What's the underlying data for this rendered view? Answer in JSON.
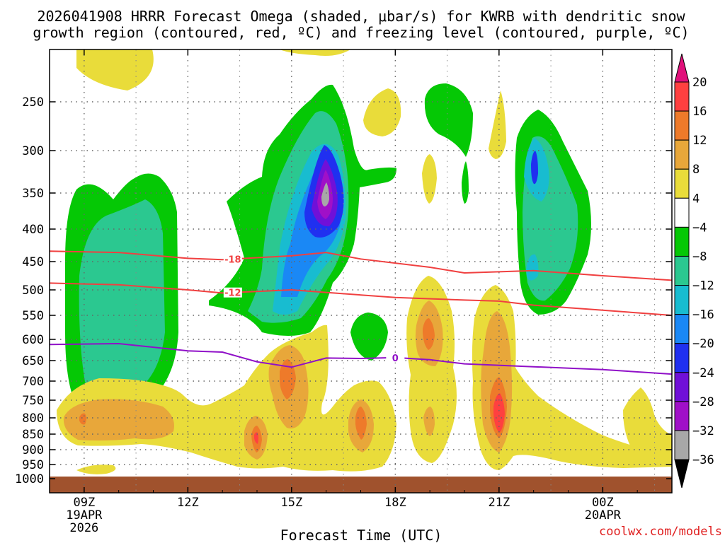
{
  "chart_data": {
    "type": "contour",
    "title_line1": "2026041908 HRRR Forecast Omega (shaded, μbar/s) for KWRB with dendritic snow",
    "title_line2": "growth region (contoured, red, ºC) and freezing level (contoured, purple, ºC)",
    "xlabel": "Forecast Time (UTC)",
    "ylabel": "",
    "credit": "coolwx.com/models",
    "x_ticks": [
      {
        "h": 9,
        "label": "09Z",
        "sub1": "19APR",
        "sub2": "2026"
      },
      {
        "h": 12,
        "label": "12Z",
        "sub1": "",
        "sub2": ""
      },
      {
        "h": 15,
        "label": "15Z",
        "sub1": "",
        "sub2": ""
      },
      {
        "h": 18,
        "label": "18Z",
        "sub1": "",
        "sub2": ""
      },
      {
        "h": 21,
        "label": "21Z",
        "sub1": "",
        "sub2": ""
      },
      {
        "h": 24,
        "label": "00Z",
        "sub1": "20APR",
        "sub2": ""
      }
    ],
    "x_range_hours": [
      8,
      26
    ],
    "y_levels": [
      {
        "p": 250,
        "label": "250"
      },
      {
        "p": 300,
        "label": "300"
      },
      {
        "p": 350,
        "label": "350"
      },
      {
        "p": 400,
        "label": "400"
      },
      {
        "p": 450,
        "label": "450"
      },
      {
        "p": 500,
        "label": "500"
      },
      {
        "p": 550,
        "label": "550"
      },
      {
        "p": 600,
        "label": "600"
      },
      {
        "p": 650,
        "label": "650"
      },
      {
        "p": 700,
        "label": "700"
      },
      {
        "p": 750,
        "label": "750"
      },
      {
        "p": 800,
        "label": "800"
      },
      {
        "p": 850,
        "label": "850"
      },
      {
        "p": 900,
        "label": "900"
      },
      {
        "p": 950,
        "label": "950"
      },
      {
        "p": 1000,
        "label": "1000"
      }
    ],
    "colorbar": {
      "labels": [
        "20",
        "16",
        "12",
        "8",
        "4",
        "−4",
        "−8",
        "−12",
        "−16",
        "−20",
        "−24",
        "−28",
        "−32",
        "−36"
      ],
      "colors": [
        "#ff4040",
        "#ee7a2a",
        "#e8a73a",
        "#e9dc3a",
        "#ffffff",
        "#05c805",
        "#2bc890",
        "#18bcd0",
        "#1a88f5",
        "#2030f0",
        "#7010d8",
        "#a010c8",
        "#a8a8a8"
      ],
      "top_arrow_color": "#e0107a",
      "bottom_arrow_color": "#000000"
    },
    "series": [
      {
        "name": "-18 C isotherm",
        "label": "-18",
        "color": "#f04040",
        "points": [
          [
            8,
            434
          ],
          [
            10,
            436
          ],
          [
            12,
            445
          ],
          [
            13,
            447
          ],
          [
            15,
            441
          ],
          [
            16,
            436
          ],
          [
            17,
            446
          ],
          [
            19,
            460
          ],
          [
            20,
            470
          ],
          [
            22,
            466
          ],
          [
            24,
            475
          ],
          [
            26,
            483
          ]
        ]
      },
      {
        "name": "-12 C isotherm",
        "label": "-12",
        "color": "#f04040",
        "points": [
          [
            8,
            488
          ],
          [
            10,
            491
          ],
          [
            12,
            500
          ],
          [
            13,
            506
          ],
          [
            15,
            500
          ],
          [
            16,
            505
          ],
          [
            18,
            515
          ],
          [
            20,
            520
          ],
          [
            21,
            522
          ],
          [
            22,
            530
          ],
          [
            24,
            540
          ],
          [
            26,
            550
          ]
        ]
      },
      {
        "name": "0 C freezing level",
        "label": "0",
        "color": "#9010c8",
        "points": [
          [
            8,
            612
          ],
          [
            10,
            610
          ],
          [
            12,
            627
          ],
          [
            13,
            630
          ],
          [
            14,
            653
          ],
          [
            15,
            666
          ],
          [
            16,
            644
          ],
          [
            17,
            645
          ],
          [
            18,
            643
          ],
          [
            19,
            648
          ],
          [
            20,
            658
          ],
          [
            22,
            665
          ],
          [
            24,
            672
          ],
          [
            26,
            683
          ]
        ]
      }
    ],
    "terrain_color": "#a0522d"
  }
}
